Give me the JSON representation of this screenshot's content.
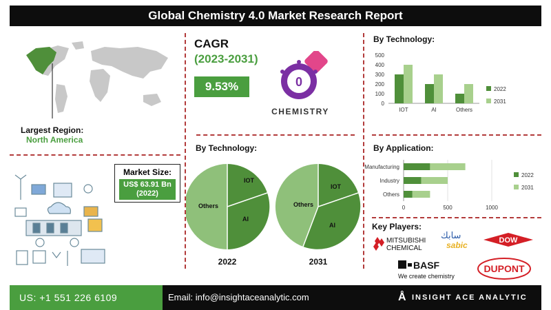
{
  "title": "Global Chemistry 4.0 Market Research Report",
  "region": {
    "label": "Largest Region:",
    "value": "North America"
  },
  "market_size": {
    "label": "Market Size:",
    "value": "US$ 63.91 Bn",
    "year": "(2022)"
  },
  "cagr": {
    "label": "CAGR",
    "period": "(2023-2031)",
    "value": "9.53%"
  },
  "logo": {
    "letter": "0",
    "text": "CHEMISTRY"
  },
  "colors": {
    "dark_green": "#4f8f3a",
    "light_green": "#a8d08d",
    "pie_light": "#8fc07a",
    "accent_red": "#b23a3a",
    "accent_purple": "#7b2fa3"
  },
  "pie_section": {
    "title": "By Technology:",
    "years": [
      "2022",
      "2031"
    ],
    "labels": [
      "IOT",
      "AI",
      "Others"
    ]
  },
  "chart_data": [
    {
      "type": "bar",
      "title": "By Technology:",
      "categories": [
        "IOT",
        "AI",
        "Others"
      ],
      "series": [
        {
          "name": "2022",
          "values": [
            300,
            200,
            100
          ]
        },
        {
          "name": "2031",
          "values": [
            400,
            300,
            200
          ]
        }
      ],
      "ylim": [
        0,
        500
      ],
      "yticks": [
        "0",
        "100",
        "200",
        "300",
        "400",
        "500"
      ]
    },
    {
      "type": "bar",
      "orientation": "horizontal",
      "title": "By Application:",
      "categories": [
        "Manufacturing",
        "Industry",
        "Others"
      ],
      "series": [
        {
          "name": "2022",
          "values": [
            300,
            200,
            100
          ]
        },
        {
          "name": "2031",
          "values": [
            700,
            500,
            300
          ]
        }
      ],
      "xlim": [
        0,
        1000
      ],
      "xticks": [
        "0",
        "500",
        "1000"
      ]
    }
  ],
  "key_players": {
    "label": "Key Players:",
    "names": [
      "MITSUBISHI",
      "CHEMICAL",
      "سابك",
      "sabic",
      "DOW",
      "BASF",
      "We create chemistry",
      "DUPONT"
    ]
  },
  "footer": {
    "phone": "US: +1 551 226 6109",
    "email": "Email: info@insightaceanalytic.com",
    "brand": "INSIGHT ACE ANALYTIC"
  }
}
